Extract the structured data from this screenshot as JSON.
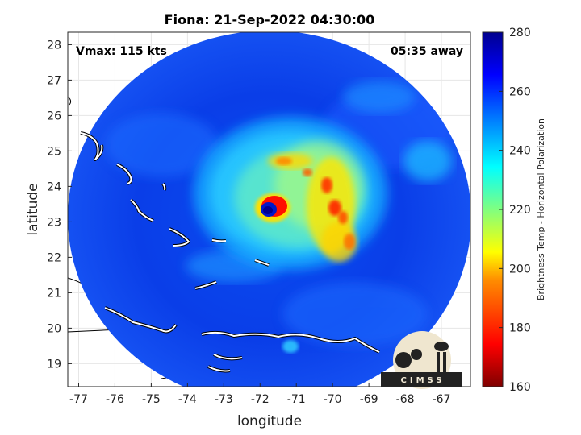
{
  "chart_data": {
    "type": "heatmap",
    "title": "Fiona: 21-Sep-2022 04:30:00",
    "xlabel": "longitude",
    "ylabel": "latitude",
    "xlim": [
      -77.3,
      -66.2
    ],
    "ylim": [
      18.35,
      28.35
    ],
    "xticks": [
      "-77",
      "-76",
      "-75",
      "-74",
      "-73",
      "-72",
      "-71",
      "-70",
      "-69",
      "-68",
      "-67"
    ],
    "yticks": [
      "19",
      "20",
      "21",
      "22",
      "23",
      "24",
      "25",
      "26",
      "27",
      "28"
    ],
    "grid": true,
    "annotations": {
      "vmax": "Vmax: 115 kts",
      "time_away": "05:35 away"
    },
    "storm_center": {
      "lon": -71.6,
      "lat": 23.4
    },
    "colorbar": {
      "label": "Brightness Temp - Horizontal Polarization",
      "min": 160,
      "max": 280,
      "ticks": [
        "280",
        "260",
        "240",
        "220",
        "200",
        "180",
        "160"
      ],
      "colormap": [
        "#7f0000",
        "#ff0000",
        "#ff8c00",
        "#ffff00",
        "#80ff80",
        "#00ffff",
        "#0080ff",
        "#0000ff",
        "#00008f"
      ]
    },
    "logo": "CIMSS"
  }
}
